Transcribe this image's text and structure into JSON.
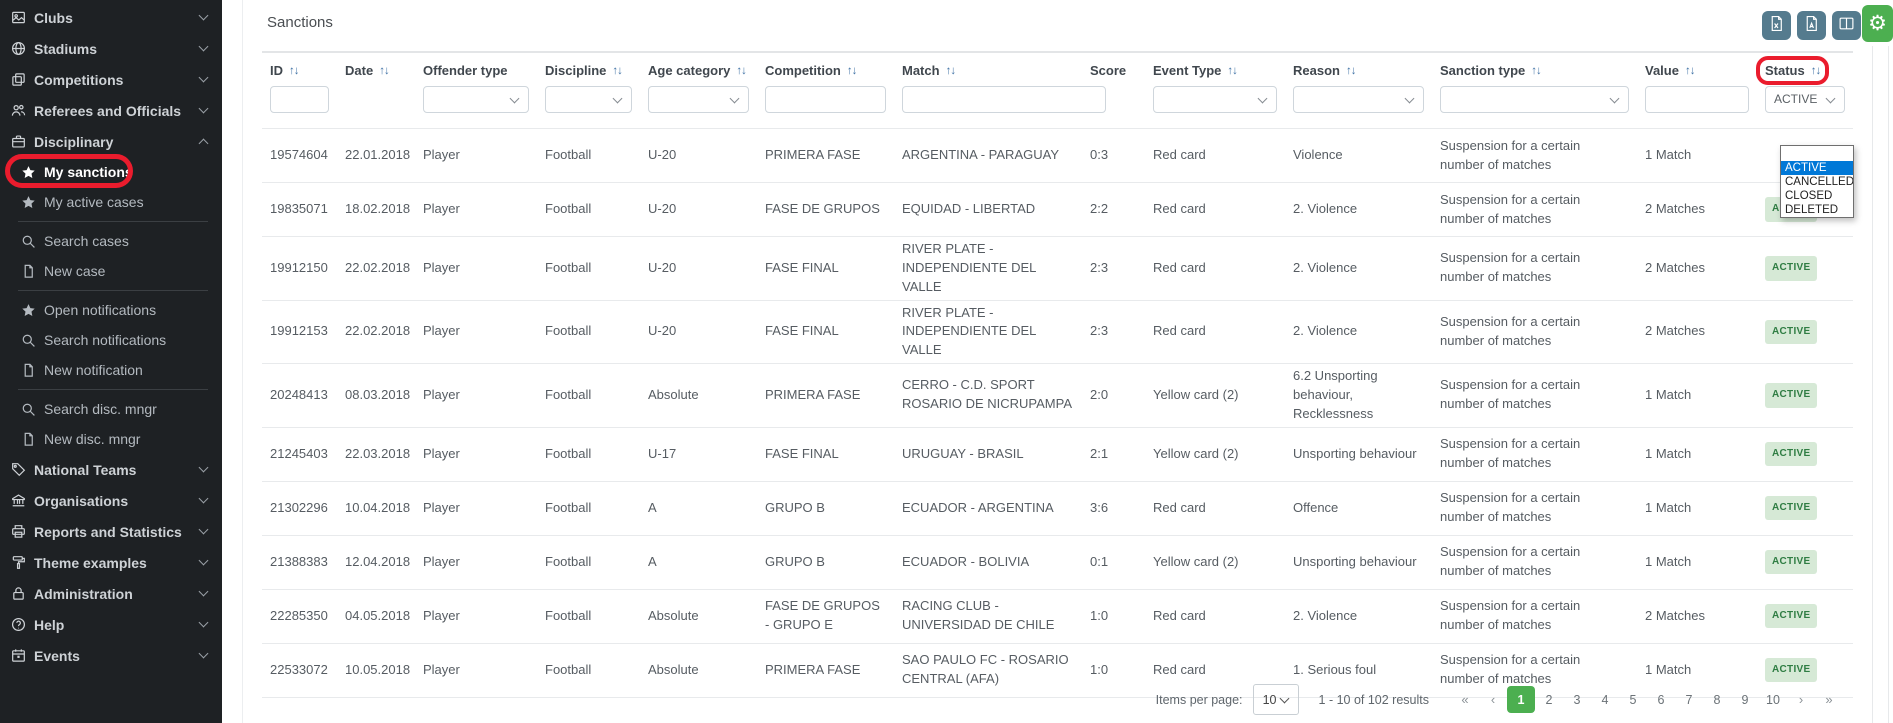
{
  "title": "Sanctions",
  "colors": {
    "sidebar_bg": "#1e2124",
    "accent_green": "#4caf50",
    "toolbar_button": "#557b8e",
    "badge_bg": "#d6e9d6",
    "badge_text": "#2f7d43",
    "annotation_red": "#ea1c2d",
    "dropdown_selected_bg": "#0078d7"
  },
  "toolbar": {
    "icons": [
      "excel-file-icon",
      "pdf-file-icon",
      "columns-icon",
      "settings-gear-icon"
    ]
  },
  "sidebar": {
    "items": [
      {
        "type": "top",
        "label": "Clubs",
        "icon": "clubs",
        "chevron": "down"
      },
      {
        "type": "top",
        "label": "Stadiums",
        "icon": "stadiums",
        "chevron": "down"
      },
      {
        "type": "top",
        "label": "Competitions",
        "icon": "competitions",
        "chevron": "down"
      },
      {
        "type": "top",
        "label": "Referees and Officials",
        "icon": "referees",
        "chevron": "down"
      },
      {
        "type": "top",
        "label": "Disciplinary",
        "icon": "disciplinary",
        "chevron": "up"
      },
      {
        "type": "sub",
        "label": "My sanctions",
        "icon": "star",
        "active": true,
        "annotated": true
      },
      {
        "type": "sub",
        "label": "My active cases",
        "icon": "star"
      },
      {
        "type": "divider"
      },
      {
        "type": "sub",
        "label": "Search cases",
        "icon": "search"
      },
      {
        "type": "sub",
        "label": "New case",
        "icon": "doc"
      },
      {
        "type": "divider"
      },
      {
        "type": "sub",
        "label": "Open notifications",
        "icon": "star"
      },
      {
        "type": "sub",
        "label": "Search notifications",
        "icon": "search"
      },
      {
        "type": "sub",
        "label": "New notification",
        "icon": "doc"
      },
      {
        "type": "divider"
      },
      {
        "type": "sub",
        "label": "Search disc. mngr",
        "icon": "search"
      },
      {
        "type": "sub",
        "label": "New disc. mngr",
        "icon": "doc"
      },
      {
        "type": "top",
        "label": "National Teams",
        "icon": "national-teams",
        "chevron": "down"
      },
      {
        "type": "top",
        "label": "Organisations",
        "icon": "organisations",
        "chevron": "down"
      },
      {
        "type": "top",
        "label": "Reports and Statistics",
        "icon": "reports",
        "chevron": "down"
      },
      {
        "type": "top",
        "label": "Theme examples",
        "icon": "theme",
        "chevron": "down"
      },
      {
        "type": "top",
        "label": "Administration",
        "icon": "administration",
        "chevron": "down"
      },
      {
        "type": "top",
        "label": "Help",
        "icon": "help",
        "chevron": "down"
      },
      {
        "type": "top",
        "label": "Events",
        "icon": "events",
        "chevron": "down"
      }
    ]
  },
  "table": {
    "columns": [
      {
        "label": "ID",
        "sortable": true,
        "filter_input": true
      },
      {
        "label": "Date",
        "sortable": true
      },
      {
        "label": "Offender type",
        "filter_select": true
      },
      {
        "label": "Discipline",
        "sortable": true,
        "filter_select": true
      },
      {
        "label": "Age category",
        "sortable": true,
        "filter_select": true
      },
      {
        "label": "Competition",
        "sortable": true,
        "filter_input": true
      },
      {
        "label": "Match",
        "sortable": true,
        "filter_input": true
      },
      {
        "label": "Score"
      },
      {
        "label": "Event Type",
        "sortable": true,
        "filter_select": true
      },
      {
        "label": "Reason",
        "sortable": true,
        "filter_select": true
      },
      {
        "label": "Sanction type",
        "sortable": true,
        "filter_select": true
      },
      {
        "label": "Value",
        "sortable": true,
        "filter_input": true
      },
      {
        "label": "Status",
        "sortable": true,
        "filter_select": true,
        "filter_value": "ACTIVE",
        "annotated": true,
        "dropdown_open": true
      }
    ],
    "rows": [
      {
        "id": "19574604",
        "date": "22.01.2018",
        "offender": "Player",
        "discipline": "Football",
        "age": "U-20",
        "competition": "PRIMERA FASE",
        "match": "ARGENTINA - PARAGUAY",
        "score": "0:3",
        "event": "Red card",
        "reason": "Violence",
        "sanction": "Suspension for a certain number of matches",
        "value": "1 Match",
        "status": ""
      },
      {
        "id": "19835071",
        "date": "18.02.2018",
        "offender": "Player",
        "discipline": "Football",
        "age": "U-20",
        "competition": "FASE DE GRUPOS",
        "match": "EQUIDAD - LIBERTAD",
        "score": "2:2",
        "event": "Red card",
        "reason": "2. Violence",
        "sanction": "Suspension for a certain number of matches",
        "value": "2 Matches",
        "status": "ACTIVE"
      },
      {
        "id": "19912150",
        "date": "22.02.2018",
        "offender": "Player",
        "discipline": "Football",
        "age": "U-20",
        "competition": "FASE FINAL",
        "match": "RIVER PLATE - INDEPENDIENTE DEL VALLE",
        "score": "2:3",
        "event": "Red card",
        "reason": "2. Violence",
        "sanction": "Suspension for a certain number of matches",
        "value": "2 Matches",
        "status": "ACTIVE"
      },
      {
        "id": "19912153",
        "date": "22.02.2018",
        "offender": "Player",
        "discipline": "Football",
        "age": "U-20",
        "competition": "FASE FINAL",
        "match": "RIVER PLATE - INDEPENDIENTE DEL VALLE",
        "score": "2:3",
        "event": "Red card",
        "reason": "2. Violence",
        "sanction": "Suspension for a certain number of matches",
        "value": "2 Matches",
        "status": "ACTIVE"
      },
      {
        "id": "20248413",
        "date": "08.03.2018",
        "offender": "Player",
        "discipline": "Football",
        "age": "Absolute",
        "competition": "PRIMERA FASE",
        "match": "CERRO - C.D. SPORT ROSARIO DE NICRUPAMPA",
        "score": "2:0",
        "event": "Yellow card (2)",
        "reason": "6.2 Unsporting behaviour, Recklessness",
        "sanction": "Suspension for a certain number of matches",
        "value": "1 Match",
        "status": "ACTIVE"
      },
      {
        "id": "21245403",
        "date": "22.03.2018",
        "offender": "Player",
        "discipline": "Football",
        "age": "U-17",
        "competition": "FASE FINAL",
        "match": "URUGUAY - BRASIL",
        "score": "2:1",
        "event": "Yellow card (2)",
        "reason": "Unsporting behaviour",
        "sanction": "Suspension for a certain number of matches",
        "value": "1 Match",
        "status": "ACTIVE"
      },
      {
        "id": "21302296",
        "date": "10.04.2018",
        "offender": "Player",
        "discipline": "Football",
        "age": "A",
        "competition": "GRUPO B",
        "match": "ECUADOR - ARGENTINA",
        "score": "3:6",
        "event": "Red card",
        "reason": "Offence",
        "sanction": "Suspension for a certain number of matches",
        "value": "1 Match",
        "status": "ACTIVE"
      },
      {
        "id": "21388383",
        "date": "12.04.2018",
        "offender": "Player",
        "discipline": "Football",
        "age": "A",
        "competition": "GRUPO B",
        "match": "ECUADOR - BOLIVIA",
        "score": "0:1",
        "event": "Yellow card (2)",
        "reason": "Unsporting behaviour",
        "sanction": "Suspension for a certain number of matches",
        "value": "1 Match",
        "status": "ACTIVE"
      },
      {
        "id": "22285350",
        "date": "04.05.2018",
        "offender": "Player",
        "discipline": "Football",
        "age": "Absolute",
        "competition": "FASE DE GRUPOS - GRUPO E",
        "match": "RACING CLUB - UNIVERSIDAD DE CHILE",
        "score": "1:0",
        "event": "Red card",
        "reason": "2. Violence",
        "sanction": "Suspension for a certain number of matches",
        "value": "2 Matches",
        "status": "ACTIVE"
      },
      {
        "id": "22533072",
        "date": "10.05.2018",
        "offender": "Player",
        "discipline": "Football",
        "age": "Absolute",
        "competition": "PRIMERA FASE",
        "match": "SAO PAULO FC - ROSARIO CENTRAL (AFA)",
        "score": "1:0",
        "event": "Red card",
        "reason": "1. Serious foul",
        "sanction": "Suspension for a certain number of matches",
        "value": "1 Match",
        "status": "ACTIVE"
      }
    ]
  },
  "status_dropdown": {
    "options": [
      {
        "label": "",
        "selected": false
      },
      {
        "label": "ACTIVE",
        "selected": true
      },
      {
        "label": "CANCELLED",
        "selected": false
      },
      {
        "label": "CLOSED",
        "selected": false
      },
      {
        "label": "DELETED",
        "selected": false
      }
    ]
  },
  "pagination": {
    "items_per_page_label": "Items per page:",
    "items_per_page": "10",
    "results_text": "1 - 10 of 102 results",
    "first": "«",
    "prev": "‹",
    "next": "›",
    "last": "»",
    "pages": [
      {
        "label": "1",
        "current": true
      },
      {
        "label": "2"
      },
      {
        "label": "3"
      },
      {
        "label": "4"
      },
      {
        "label": "5"
      },
      {
        "label": "6"
      },
      {
        "label": "7"
      },
      {
        "label": "8"
      },
      {
        "label": "9"
      },
      {
        "label": "10"
      }
    ]
  }
}
